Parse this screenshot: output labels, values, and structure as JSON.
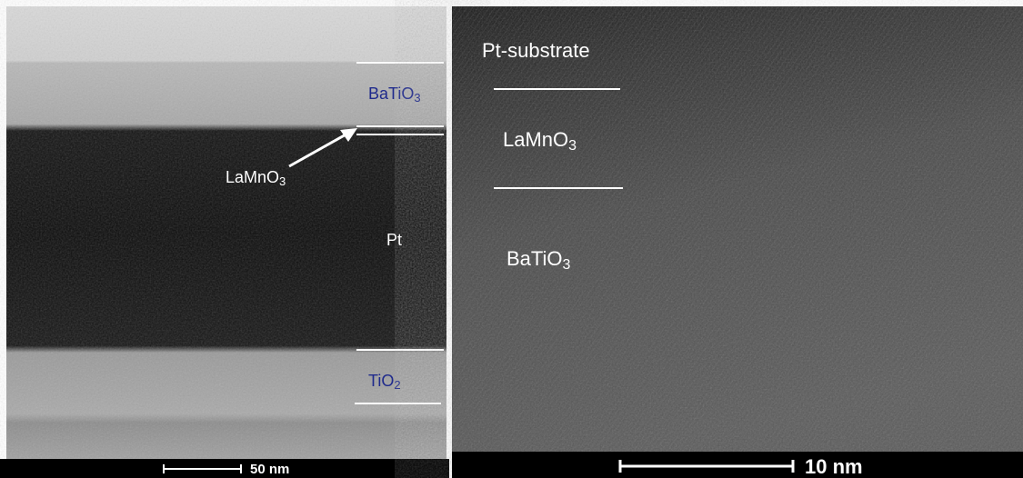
{
  "left_panel": {
    "labels": {
      "batio3": {
        "text": "BaTiO",
        "sub": "3"
      },
      "lamno3": {
        "text": "LaMnO",
        "sub": "3"
      },
      "pt": {
        "text": "Pt"
      },
      "tio2": {
        "text": "TiO",
        "sub": "2"
      }
    },
    "scale_bar": "50 nm"
  },
  "right_panel": {
    "labels": {
      "pt_substrate": {
        "text": "Pt-substrate"
      },
      "lamno3": {
        "text": "LaMnO",
        "sub": "3"
      },
      "batio3": {
        "text": "BaTiO",
        "sub": "3"
      }
    },
    "scale_bar": "10 nm"
  }
}
